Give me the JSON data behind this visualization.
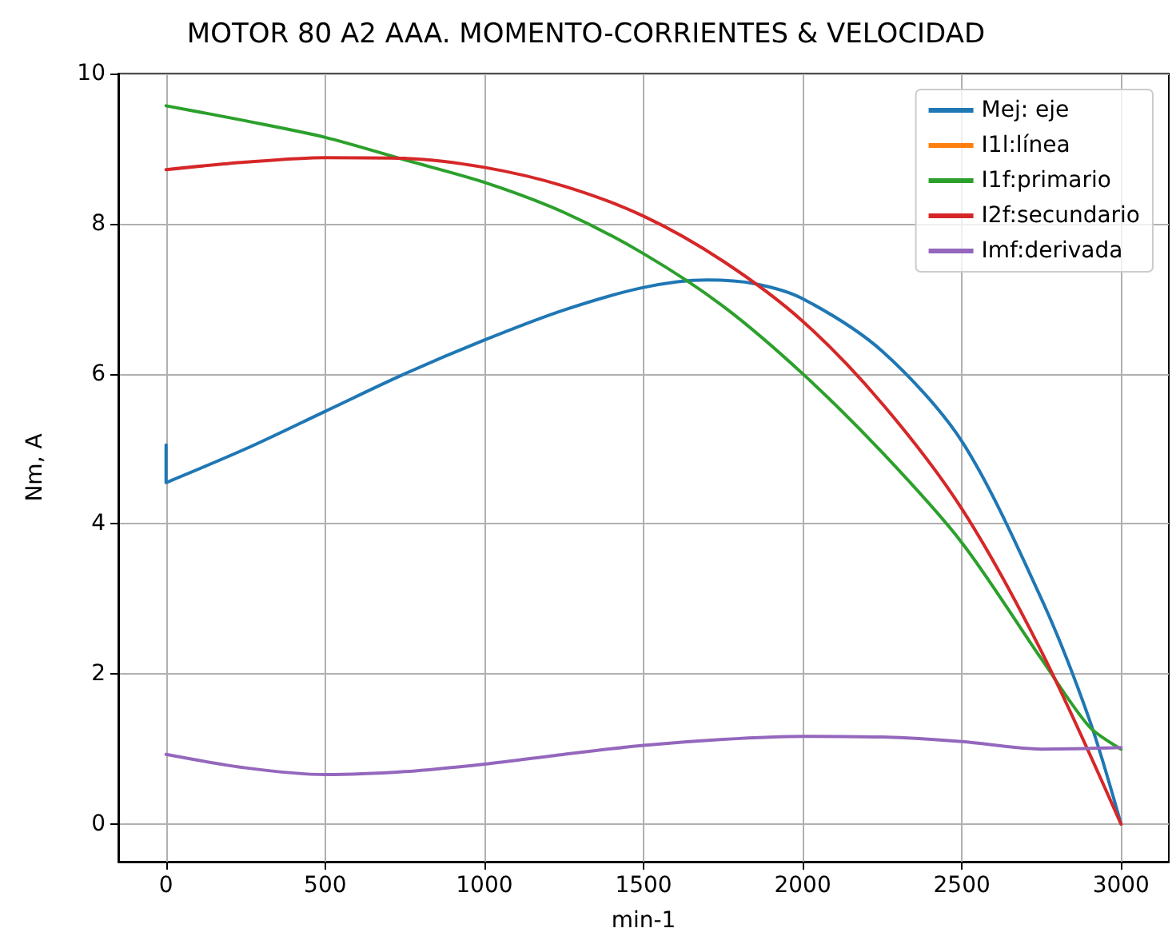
{
  "chart_data": {
    "type": "line",
    "title": "MOTOR 80 A2 AAA. MOMENTO-CORRIENTES & VELOCIDAD",
    "xlabel": "min-1",
    "ylabel": "Nm, A",
    "xlim": [
      -150,
      3150
    ],
    "xticks": [
      0,
      500,
      1000,
      1500,
      2000,
      2500,
      3000
    ],
    "ylim": [
      -0.5,
      10
    ],
    "yticks": [
      0,
      2,
      4,
      6,
      8,
      10
    ],
    "grid": true,
    "legend": "top right",
    "line_style": "solid",
    "series": [
      {
        "name": "Mej: eje",
        "color": "#1f77b4",
        "x": [
          0,
          0,
          250,
          500,
          750,
          1000,
          1250,
          1500,
          1700,
          1850,
          2000,
          2250,
          2500,
          2750,
          2900,
          3000
        ],
        "values": [
          5.05,
          4.55,
          5.0,
          5.5,
          6.0,
          6.45,
          6.85,
          7.15,
          7.25,
          7.2,
          7.0,
          6.3,
          5.1,
          3.0,
          1.4,
          0
        ]
      },
      {
        "name": "I1l:línea",
        "color": "#ff7f0e"
      },
      {
        "name": "I1f:primario",
        "color": "#2ca02c",
        "x": [
          0,
          250,
          500,
          750,
          1000,
          1250,
          1500,
          1750,
          2000,
          2250,
          2500,
          2750,
          2900,
          3000
        ],
        "values": [
          9.57,
          9.37,
          9.15,
          8.85,
          8.55,
          8.15,
          7.6,
          6.9,
          6.0,
          4.95,
          3.75,
          2.2,
          1.3,
          1.0
        ]
      },
      {
        "name": "I2f:secundario",
        "color": "#d62728",
        "x": [
          0,
          250,
          500,
          750,
          1000,
          1250,
          1500,
          1750,
          2000,
          2250,
          2500,
          2750,
          3000
        ],
        "values": [
          8.72,
          8.82,
          8.88,
          8.87,
          8.75,
          8.5,
          8.1,
          7.5,
          6.7,
          5.6,
          4.2,
          2.3,
          0
        ]
      },
      {
        "name": "Imf:derivada",
        "color": "#9467bd",
        "x": [
          0,
          250,
          500,
          750,
          1000,
          1250,
          1500,
          1750,
          2000,
          2250,
          2500,
          2750,
          3000
        ],
        "values": [
          0.93,
          0.75,
          0.66,
          0.7,
          0.8,
          0.93,
          1.05,
          1.13,
          1.17,
          1.16,
          1.1,
          1.0,
          1.02
        ]
      }
    ]
  }
}
